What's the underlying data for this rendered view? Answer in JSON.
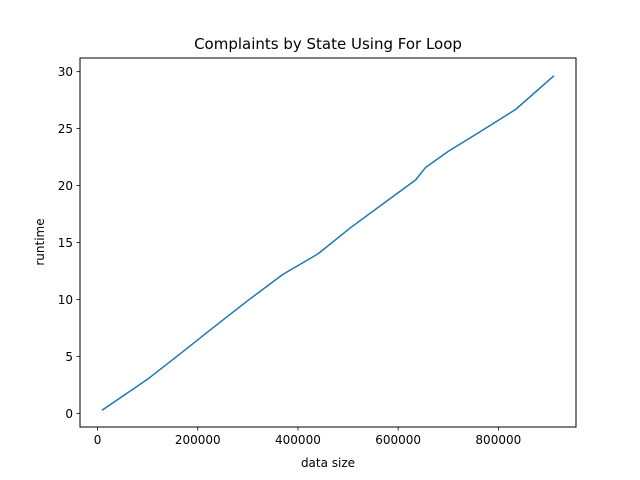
{
  "chart_data": {
    "type": "line",
    "title": "Complaints by State Using For Loop",
    "xlabel": "data size",
    "ylabel": "runtime",
    "xlim": [
      -35000,
      955000
    ],
    "ylim": [
      -1.2,
      31.2
    ],
    "xticks": [
      0,
      200000,
      400000,
      600000,
      800000
    ],
    "xtick_labels": [
      "0",
      "200000",
      "400000",
      "600000",
      "800000"
    ],
    "yticks": [
      0,
      5,
      10,
      15,
      20,
      25,
      30
    ],
    "ytick_labels": [
      "0",
      "5",
      "10",
      "15",
      "20",
      "25",
      "30"
    ],
    "grid": false,
    "legend": "none",
    "line_color": "#1f77b4",
    "series": [
      {
        "x": [
          10000,
          100000,
          170000,
          230000,
          300000,
          370000,
          440000,
          505000,
          570000,
          635000,
          655000,
          700000,
          770000,
          835000,
          910000
        ],
        "y": [
          0.3,
          3.0,
          5.4,
          7.5,
          9.9,
          12.2,
          14.0,
          16.3,
          18.4,
          20.5,
          21.6,
          23.0,
          24.9,
          26.7,
          29.6
        ]
      }
    ]
  }
}
